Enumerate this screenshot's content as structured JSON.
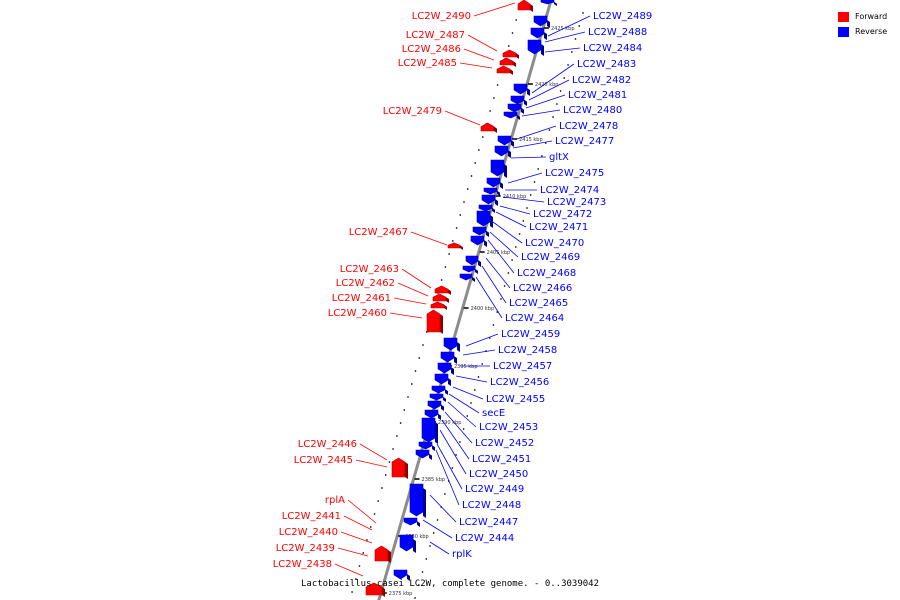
{
  "colors": {
    "forward": "#ff0000",
    "reverse": "#0000ff",
    "axis": "#8c8c8c"
  },
  "legend": {
    "forward_label": "Forward",
    "reverse_label": "Reverse"
  },
  "caption": "Lactobacillus casei LC2W, complete genome. - 0..3039042",
  "scale_ticks": [
    "2425 kbp",
    "2420 kbp",
    "2415 kbp",
    "2410 kbp",
    "2405 kbp",
    "2400 kbp",
    "2395 kbp",
    "2390 kbp",
    "2385 kbp",
    "2380 kbp",
    "2375 kbp"
  ],
  "forward_genes": [
    "LC2W_2490",
    "LC2W_2487",
    "LC2W_2486",
    "LC2W_2485",
    "LC2W_2479",
    "LC2W_2467",
    "LC2W_2463",
    "LC2W_2462",
    "LC2W_2461",
    "LC2W_2460",
    "LC2W_2446",
    "LC2W_2445",
    "rplA",
    "LC2W_2441",
    "LC2W_2440",
    "LC2W_2439",
    "LC2W_2438"
  ],
  "reverse_genes": [
    "LC2W_2489",
    "LC2W_2488",
    "LC2W_2484",
    "LC2W_2483",
    "LC2W_2482",
    "LC2W_2481",
    "LC2W_2480",
    "LC2W_2478",
    "LC2W_2477",
    "gltX",
    "LC2W_2475",
    "LC2W_2474",
    "LC2W_2473",
    "LC2W_2472",
    "LC2W_2471",
    "LC2W_2470",
    "LC2W_2469",
    "LC2W_2468",
    "LC2W_2466",
    "LC2W_2465",
    "LC2W_2464",
    "LC2W_2459",
    "LC2W_2458",
    "LC2W_2457",
    "LC2W_2456",
    "LC2W_2455",
    "secE",
    "LC2W_2453",
    "LC2W_2452",
    "LC2W_2451",
    "LC2W_2450",
    "LC2W_2449",
    "LC2W_2448",
    "LC2W_2447",
    "LC2W_2444",
    "rplK"
  ]
}
